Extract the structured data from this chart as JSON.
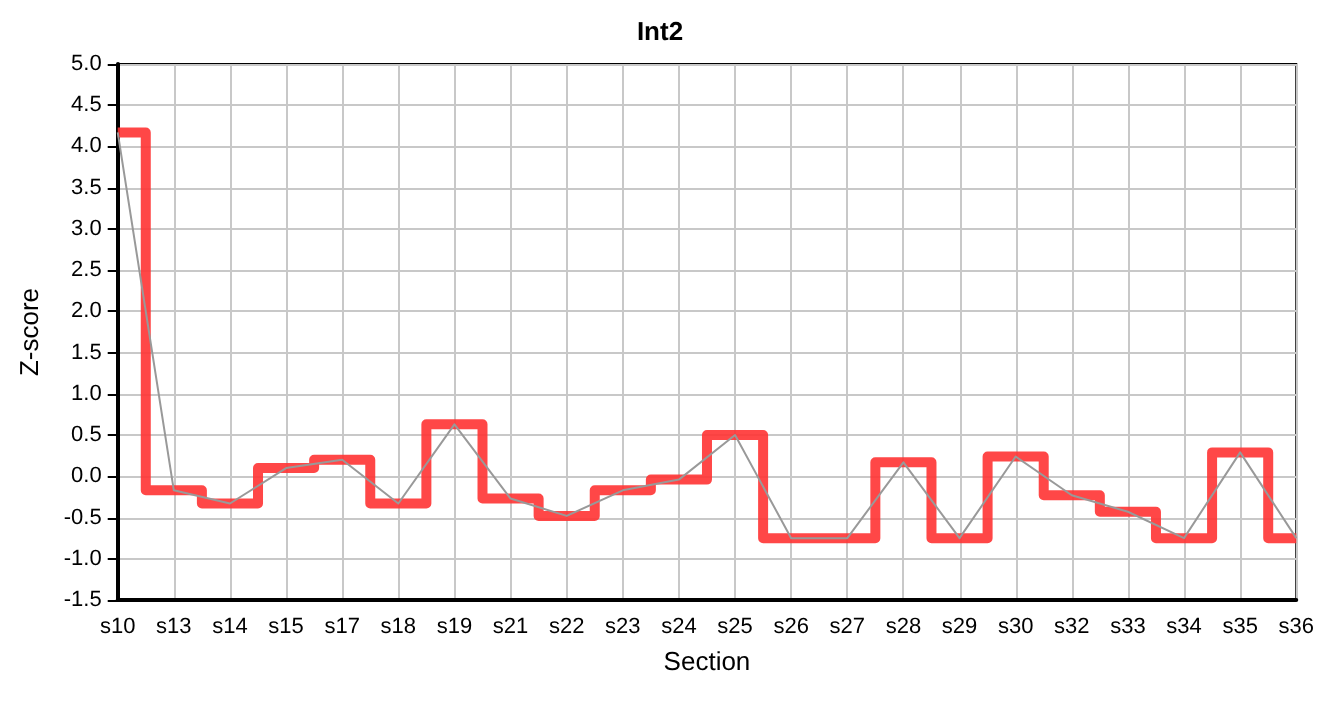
{
  "chart_data": {
    "type": "step",
    "title": "Int2",
    "xlabel": "Section",
    "ylabel": "Z-score",
    "categories": [
      "s10",
      "s13",
      "s14",
      "s15",
      "s17",
      "s18",
      "s19",
      "s21",
      "s22",
      "s23",
      "s24",
      "s25",
      "s26",
      "s27",
      "s28",
      "s29",
      "s30",
      "s32",
      "s33",
      "s34",
      "s35",
      "s36"
    ],
    "series": [
      {
        "type": "line",
        "color": "#999999",
        "values": [
          4.17,
          -0.17,
          -0.33,
          0.1,
          0.2,
          -0.33,
          0.63,
          -0.27,
          -0.48,
          -0.17,
          -0.04,
          0.5,
          -0.75,
          -0.75,
          0.17,
          -0.75,
          0.24,
          -0.23,
          -0.43,
          -0.75,
          0.29,
          -0.75
        ]
      },
      {
        "type": "step",
        "color": "#ff3333",
        "values": [
          4.17,
          -0.17,
          -0.33,
          0.1,
          0.2,
          -0.33,
          0.63,
          -0.27,
          -0.48,
          -0.17,
          -0.04,
          0.5,
          -0.75,
          -0.75,
          0.17,
          -0.75,
          0.24,
          -0.23,
          -0.43,
          -0.75,
          0.29,
          -0.75
        ]
      }
    ],
    "ylim": [
      -1.5,
      5
    ],
    "yticks": [
      -1.5,
      {
        "value": -1,
        "label": "-1.0"
      },
      -0.5,
      {
        "value": 0,
        "label": "0.0"
      },
      0.5,
      {
        "value": 1,
        "label": "1.0"
      },
      1.5,
      {
        "value": 2,
        "label": "2.0"
      },
      2.5,
      {
        "value": 3,
        "label": "3.0"
      },
      3.5,
      {
        "value": 4,
        "label": "4.0"
      },
      4.5,
      {
        "value": 5,
        "label": "5.0"
      }
    ],
    "grid": true,
    "marker": "none",
    "line_style": "solid"
  }
}
